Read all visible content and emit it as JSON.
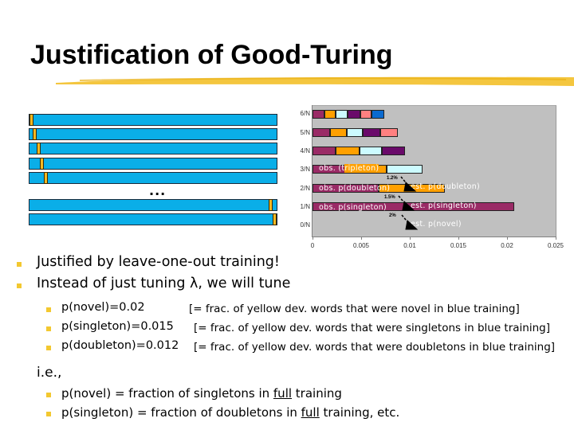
{
  "slide": {
    "title": "Justification of Good-Turing",
    "accent_color": "#f3c830",
    "ellipsis": "..."
  },
  "diagram": {
    "description": "Leave-one-out strips: blue training bars with a sliding yellow held-out segment",
    "blue_color": "#0aaee8",
    "yellow_color": "#f6b822",
    "strips": [
      {
        "yellow_left": 1
      },
      {
        "yellow_left": 5
      },
      {
        "yellow_left": 10
      },
      {
        "yellow_left": 15
      },
      {
        "yellow_left": 19
      },
      {
        "yellow_left": 300
      },
      {
        "yellow_left": 306
      }
    ]
  },
  "chart_data": {
    "type": "bar",
    "orientation": "horizontal",
    "stacked": true,
    "categories": [
      "6/N",
      "5/N",
      "4/N",
      "3/N",
      "2/N",
      "1/N",
      "0/N"
    ],
    "xlim": [
      0,
      0.025
    ],
    "xticks": [
      "0",
      "0.005",
      "0.01",
      "0.015",
      "0.02",
      "0.025"
    ],
    "grid": false,
    "background": "#c0c0c0",
    "rows": [
      {
        "label": "6/N",
        "segments": [
          {
            "color": "#9a2b66",
            "value": 0.0012
          },
          {
            "color": "#ffa000",
            "value": 0.0012
          },
          {
            "color": "#ccfbff",
            "value": 0.0012
          },
          {
            "color": "#6a0a6a",
            "value": 0.0013
          },
          {
            "color": "#ff8080",
            "value": 0.0012
          },
          {
            "color": "#0a6ad0",
            "value": 0.0013
          }
        ]
      },
      {
        "label": "5/N",
        "segments": [
          {
            "color": "#9a2b66",
            "value": 0.0018
          },
          {
            "color": "#ffa000",
            "value": 0.0017
          },
          {
            "color": "#ccfbff",
            "value": 0.0017
          },
          {
            "color": "#6a0a6a",
            "value": 0.0018
          },
          {
            "color": "#ff8080",
            "value": 0.0018
          }
        ]
      },
      {
        "label": "4/N",
        "segments": [
          {
            "color": "#9a2b66",
            "value": 0.0024
          },
          {
            "color": "#ffa000",
            "value": 0.0024
          },
          {
            "color": "#ccfbff",
            "value": 0.0023
          },
          {
            "color": "#6a0a6a",
            "value": 0.0024
          }
        ]
      },
      {
        "label": "3/N",
        "segments": [
          {
            "color": "#9a2b66",
            "value": 0.0039
          },
          {
            "color": "#ffa000",
            "value": 0.0037
          },
          {
            "color": "#ccfbff",
            "value": 0.0037
          }
        ]
      },
      {
        "label": "2/N",
        "segments": [
          {
            "color": "#9a2b66",
            "value": 0.0068
          },
          {
            "color": "#ffa000",
            "value": 0.0068
          }
        ]
      },
      {
        "label": "1/N",
        "segments": [
          {
            "color": "#9a2b66",
            "value": 0.0207
          }
        ]
      },
      {
        "label": "0/N",
        "segments": []
      }
    ],
    "annotations": [
      {
        "text": "obs. (tripleton)",
        "row": "3/N"
      },
      {
        "text": "obs. p(doubleton)",
        "row": "2/N"
      },
      {
        "text": "est. p(doubleton)",
        "row": "2/N"
      },
      {
        "text": "obs. p(singleton)",
        "row": "1/N"
      },
      {
        "text": "est. p(singleton)",
        "row": "1/N"
      },
      {
        "text": "est. p(novel)",
        "row": "0/N"
      },
      {
        "text": "1.2%",
        "between": [
          "3/N",
          "2/N"
        ]
      },
      {
        "text": "1.5%",
        "between": [
          "2/N",
          "1/N"
        ]
      },
      {
        "text": "2%",
        "between": [
          "1/N",
          "0/N"
        ]
      }
    ],
    "title": "",
    "xlabel": "",
    "ylabel": ""
  },
  "bullets": {
    "level1": [
      "Justified by leave-one-out training!",
      "Instead of just tuning λ, we will tune"
    ],
    "level2": [
      {
        "lhs": "p(novel)=0.02",
        "rhs": "[= frac. of yellow dev. words that were novel in blue training]"
      },
      {
        "lhs": "p(singleton)=0.015",
        "rhs": "[= frac. of yellow dev. words that were singletons in blue training]"
      },
      {
        "lhs": "p(doubleton)=0.012",
        "rhs": "[= frac. of yellow dev. words that were doubletons in blue training]"
      }
    ],
    "ie": "i.e.,",
    "level2b": [
      {
        "pre": "p(novel) = fraction of singletons in ",
        "u": "full",
        "post": " training"
      },
      {
        "pre": "p(singleton) = fraction of doubletons in ",
        "u": "full",
        "post": " training, etc."
      }
    ]
  }
}
